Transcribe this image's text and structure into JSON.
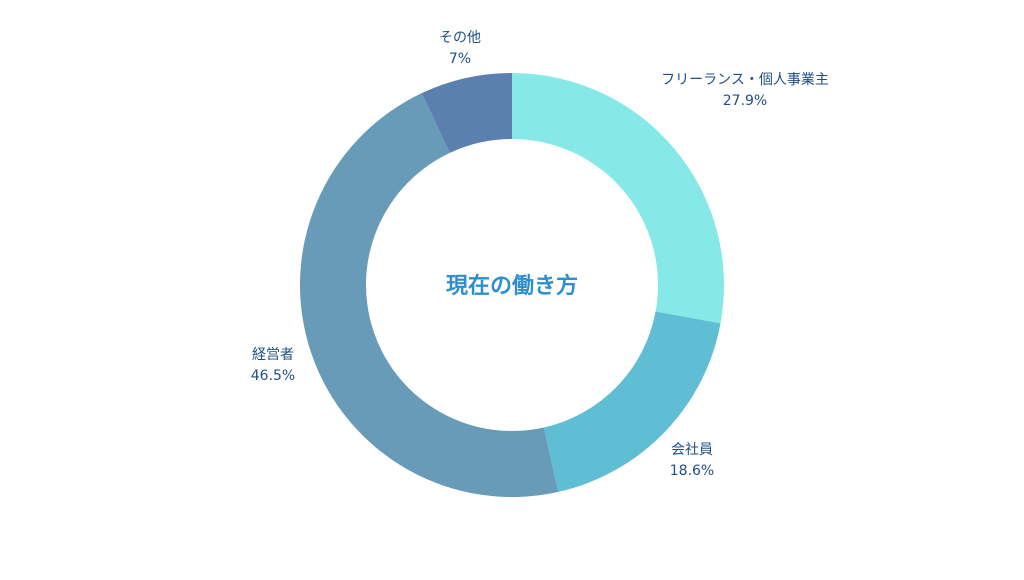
{
  "chart_data": {
    "type": "pie",
    "donut": true,
    "title": "現在の働き方",
    "start_angle": "top",
    "direction": "clockwise",
    "slices": [
      {
        "name": "フリーランス・個人事業主",
        "value": 27.9,
        "label": "27.9%",
        "color": "#87E8E8"
      },
      {
        "name": "会社員",
        "value": 18.6,
        "label": "18.6%",
        "color": "#5FBDD4"
      },
      {
        "name": "経営者",
        "value": 46.5,
        "label": "46.5%",
        "color": "#679BB7"
      },
      {
        "name": "その他",
        "value": 7,
        "label": "7%",
        "color": "#5B7FAE"
      }
    ]
  },
  "center_title_color": "#2D8FD0",
  "label_color": "#1F4F86"
}
